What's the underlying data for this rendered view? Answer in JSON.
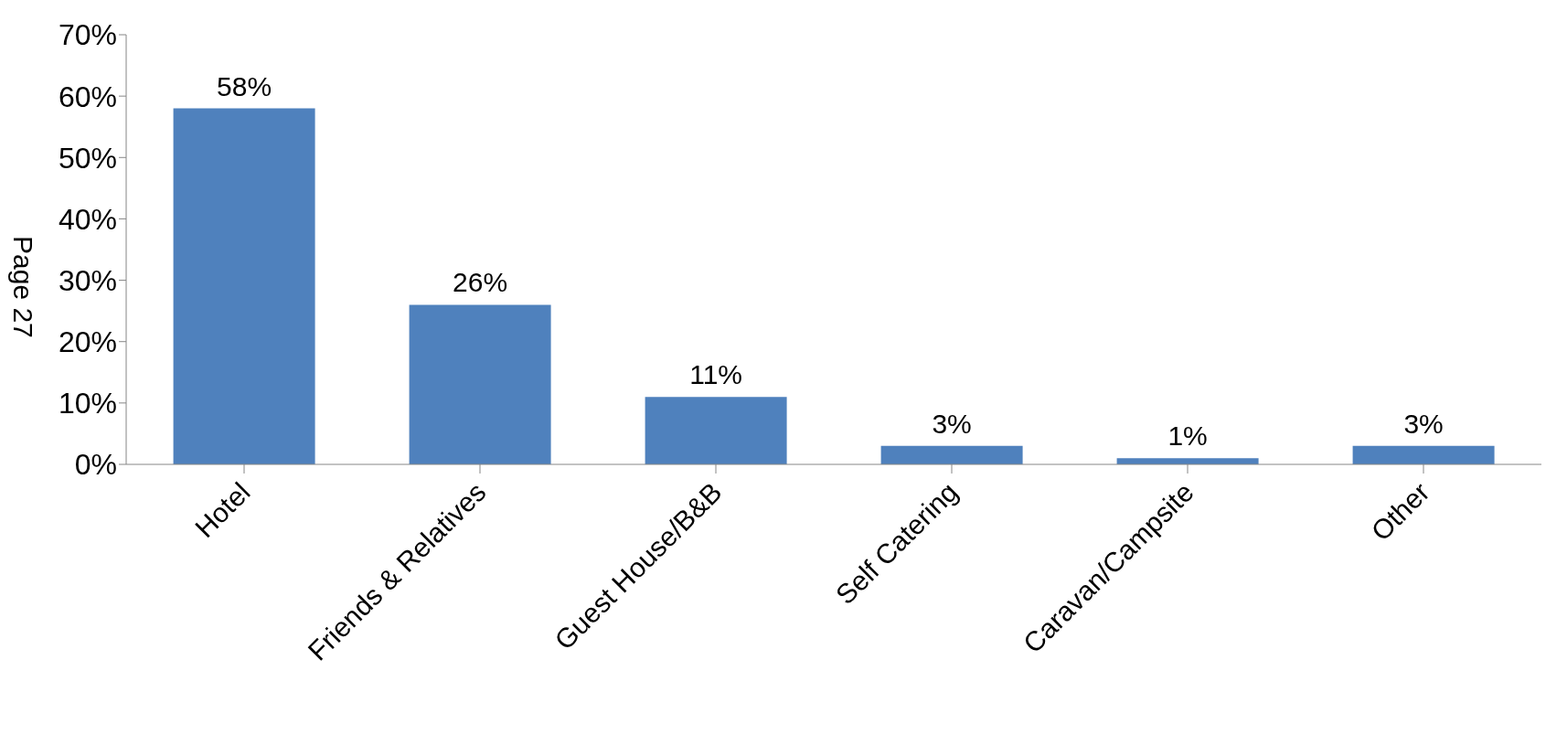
{
  "chart_data": {
    "type": "bar",
    "categories": [
      "Hotel",
      "Friends & Relatives",
      "Guest House/B&B",
      "Self Catering",
      "Caravan/Campsite",
      "Other"
    ],
    "values": [
      58,
      26,
      11,
      3,
      1,
      3
    ],
    "value_labels": [
      "58%",
      "26%",
      "11%",
      "3%",
      "1%",
      "3%"
    ],
    "color": "#4f81bd",
    "ylim": [
      0,
      70
    ],
    "yticks": [
      {
        "value": 0,
        "label": "0%"
      },
      {
        "value": 10,
        "label": "10%"
      },
      {
        "value": 20,
        "label": "20%"
      },
      {
        "value": 30,
        "label": "30%"
      },
      {
        "value": 40,
        "label": "40%"
      },
      {
        "value": 50,
        "label": "50%"
      },
      {
        "value": 60,
        "label": "60%"
      },
      {
        "value": 70,
        "label": "70%"
      }
    ],
    "annotations": [
      "Page 27"
    ],
    "grid": false,
    "legend": false
  }
}
